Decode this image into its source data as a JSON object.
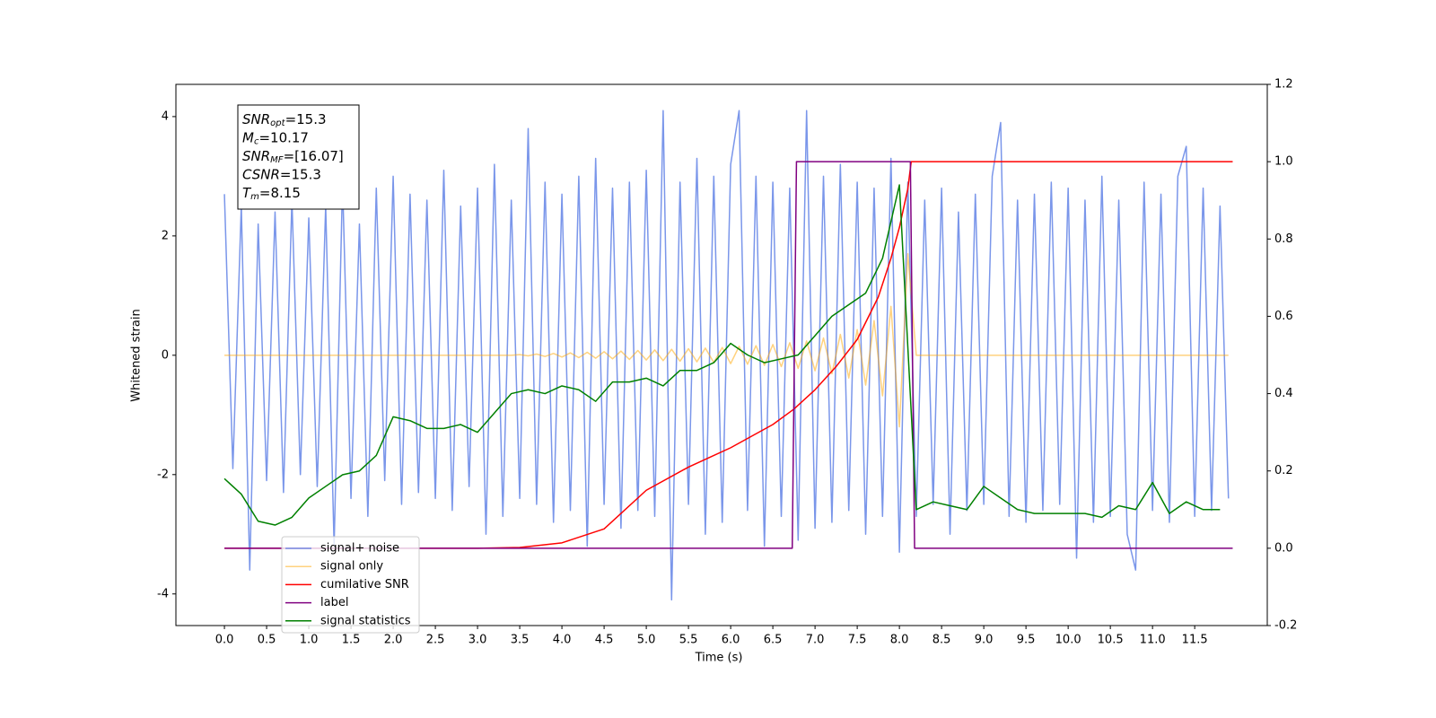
{
  "chart_data": {
    "type": "line",
    "xlabel": "Time (s)",
    "ylabel": "Whitened strain",
    "xlim": [
      -0.575,
      12.36
    ],
    "ylim": [
      -4.53,
      4.54
    ],
    "y2lim": [
      -0.2,
      1.2
    ],
    "xticks": [
      {
        "value": 0,
        "label": "0.0"
      },
      0.5,
      {
        "value": 1,
        "label": "1.0"
      },
      1.5,
      {
        "value": 2,
        "label": "2.0"
      },
      2.5,
      {
        "value": 3,
        "label": "3.0"
      },
      3.5,
      {
        "value": 4,
        "label": "4.0"
      },
      4.5,
      {
        "value": 5,
        "label": "5.0"
      },
      5.5,
      {
        "value": 6,
        "label": "6.0"
      },
      6.5,
      {
        "value": 7,
        "label": "7.0"
      },
      7.5,
      {
        "value": 8,
        "label": "8.0"
      },
      8.5,
      {
        "value": 9,
        "label": "9.0"
      },
      9.5,
      {
        "value": 10,
        "label": "10.0"
      },
      10.5,
      {
        "value": 11,
        "label": "11.0"
      },
      11.5
    ],
    "yticks": [
      -4,
      -2,
      0,
      2,
      4
    ],
    "y2ticks": [
      -0.2,
      {
        "value": 0,
        "label": "0.0"
      },
      0.2,
      0.4,
      0.6,
      0.8,
      {
        "value": 1,
        "label": "1.0"
      },
      1.2
    ],
    "annotations": [
      {
        "sym": "SNR",
        "sub": "opt",
        "text": "=15.3"
      },
      {
        "sym": "M",
        "sub": "c",
        "text": "=10.17"
      },
      {
        "sym": "SNR",
        "sub": "MF",
        "text": "=[16.07]"
      },
      {
        "sym": "CSNR",
        "text": "=15.3"
      },
      {
        "sym": "T",
        "sub": "m",
        "text": "=8.15"
      }
    ],
    "series": [
      {
        "name": "signal+ noise",
        "color": "#4169e1",
        "alpha": 0.7,
        "x": [
          0,
          0.1,
          0.2,
          0.3,
          0.4,
          0.5,
          0.6,
          0.7,
          0.8,
          0.9,
          1,
          1.1,
          1.2,
          1.3,
          1.4,
          1.5,
          1.6,
          1.7,
          1.8,
          1.9,
          2,
          2.1,
          2.2,
          2.3,
          2.4,
          2.5,
          2.6,
          2.7,
          2.8,
          2.9,
          3,
          3.1,
          3.2,
          3.3,
          3.4,
          3.5,
          3.6,
          3.7,
          3.8,
          3.9,
          4,
          4.1,
          4.2,
          4.3,
          4.4,
          4.5,
          4.6,
          4.7,
          4.8,
          4.9,
          5,
          5.1,
          5.2,
          5.3,
          5.4,
          5.5,
          5.6,
          5.7,
          5.8,
          5.9,
          6,
          6.1,
          6.2,
          6.3,
          6.4,
          6.5,
          6.6,
          6.7,
          6.8,
          6.9,
          7,
          7.1,
          7.2,
          7.3,
          7.4,
          7.5,
          7.6,
          7.7,
          7.8,
          7.9,
          8,
          8.1,
          8.2,
          8.3,
          8.4,
          8.5,
          8.6,
          8.7,
          8.8,
          8.9,
          9,
          9.1,
          9.2,
          9.3,
          9.4,
          9.5,
          9.6,
          9.7,
          9.8,
          9.9,
          10,
          10.1,
          10.2,
          10.3,
          10.4,
          10.5,
          10.6,
          10.7,
          10.8,
          10.9,
          11,
          11.1,
          11.2,
          11.3,
          11.4,
          11.5,
          11.6,
          11.7,
          11.8,
          11.9
        ],
        "values": [
          2.7,
          -1.9,
          2.5,
          -3.6,
          2.2,
          -2.1,
          2.4,
          -2.3,
          2.6,
          -2.0,
          2.3,
          -2.2,
          2.5,
          -3.2,
          2.9,
          -2.4,
          2.2,
          -2.7,
          2.8,
          -2.1,
          3.0,
          -2.5,
          2.7,
          -2.3,
          2.6,
          -2.4,
          3.1,
          -2.6,
          2.5,
          -2.2,
          2.8,
          -3.0,
          3.2,
          -2.7,
          2.6,
          -2.4,
          3.8,
          -2.5,
          2.9,
          -2.8,
          2.7,
          -2.6,
          3.0,
          -3.2,
          3.3,
          -2.5,
          2.8,
          -2.9,
          2.9,
          -2.6,
          3.1,
          -2.7,
          4.1,
          -4.1,
          2.9,
          -2.5,
          3.3,
          -3.0,
          3.0,
          -2.8,
          3.2,
          4.1,
          -2.6,
          3.0,
          -3.2,
          2.9,
          -2.7,
          2.8,
          -3.1,
          4.1,
          -2.9,
          3.0,
          -2.8,
          3.2,
          -2.6,
          2.9,
          -3.0,
          2.8,
          -2.7,
          3.3,
          -3.3,
          2.9,
          -2.7,
          2.6,
          -2.5,
          2.8,
          -3.0,
          2.4,
          -2.6,
          2.7,
          -2.5,
          3.0,
          3.9,
          -2.7,
          2.6,
          -2.8,
          2.7,
          -2.6,
          2.9,
          -2.5,
          2.8,
          -3.4,
          2.6,
          -2.8,
          3.0,
          -2.7,
          2.6,
          -3.0,
          -3.6,
          2.9,
          -2.6,
          2.7,
          -2.8,
          3.0,
          3.5,
          -2.7,
          2.8,
          -2.6,
          2.5,
          -2.4
        ]
      },
      {
        "name": "signal only",
        "color": "#ffa500",
        "alpha": 0.5,
        "x": [
          0,
          0.1,
          0.2,
          0.3,
          0.4,
          0.5,
          0.6,
          0.7,
          0.8,
          0.9,
          1,
          1.1,
          1.2,
          1.3,
          1.4,
          1.5,
          1.6,
          1.7,
          1.8,
          1.9,
          2,
          2.1,
          2.2,
          2.3,
          2.4,
          2.5,
          2.6,
          2.7,
          2.8,
          2.9,
          3,
          3.1,
          3.2,
          3.3,
          3.4,
          3.5,
          3.6,
          3.7,
          3.8,
          3.9,
          4,
          4.1,
          4.2,
          4.3,
          4.4,
          4.5,
          4.6,
          4.7,
          4.8,
          4.9,
          5,
          5.1,
          5.2,
          5.3,
          5.4,
          5.5,
          5.6,
          5.7,
          5.8,
          5.9,
          6,
          6.1,
          6.2,
          6.3,
          6.4,
          6.5,
          6.6,
          6.7,
          6.8,
          6.9,
          7,
          7.1,
          7.2,
          7.3,
          7.4,
          7.5,
          7.6,
          7.7,
          7.8,
          7.9,
          8,
          8.1,
          8.2,
          8.3,
          8.4,
          8.5,
          8.6,
          8.7,
          8.8,
          8.9,
          9,
          9.1,
          9.2,
          9.3,
          9.4,
          9.5,
          9.6,
          9.7,
          9.8,
          9.9,
          10,
          10.1,
          10.2,
          10.3,
          10.4,
          10.5,
          10.6,
          10.7,
          10.8,
          10.9,
          11,
          11.1,
          11.2,
          11.3,
          11.4,
          11.5,
          11.6,
          11.7,
          11.8,
          11.9
        ],
        "values": [
          0,
          0,
          0,
          0,
          0,
          0,
          0,
          0,
          0,
          0,
          0,
          0,
          0,
          0,
          0,
          0,
          0,
          0,
          0,
          0,
          0,
          0,
          0,
          0,
          0,
          0,
          0,
          0,
          0,
          0,
          0,
          0,
          0,
          0,
          0,
          0.01,
          -0.01,
          0.02,
          -0.02,
          0.03,
          -0.03,
          0.04,
          -0.04,
          0.05,
          -0.05,
          0.06,
          -0.06,
          0.07,
          -0.07,
          0.08,
          -0.08,
          0.09,
          -0.09,
          0.1,
          -0.1,
          0.11,
          -0.11,
          0.12,
          -0.12,
          0.13,
          -0.14,
          0.15,
          -0.15,
          0.16,
          -0.17,
          0.18,
          -0.19,
          0.21,
          -0.22,
          0.24,
          -0.26,
          0.29,
          -0.31,
          0.35,
          -0.38,
          0.43,
          -0.5,
          0.58,
          -0.68,
          0.82,
          -1.2,
          1.7,
          0,
          0,
          0,
          0,
          0,
          0,
          0,
          0,
          0,
          0,
          0,
          0,
          0,
          0,
          0,
          0,
          0,
          0,
          0,
          0,
          0,
          0,
          0,
          0,
          0,
          0,
          0,
          0,
          0,
          0,
          0,
          0,
          0,
          0,
          0,
          0,
          0,
          0
        ]
      },
      {
        "name": "cumilative SNR",
        "color": "#ff0000",
        "axis": "y2",
        "x": [
          0,
          1,
          2,
          3,
          3.5,
          4,
          4.5,
          5,
          5.5,
          6,
          6.5,
          6.75,
          7,
          7.25,
          7.5,
          7.75,
          7.9,
          8,
          8.1,
          8.14,
          8.2,
          9,
          10,
          11,
          11.95
        ],
        "values": [
          0,
          0,
          0,
          0,
          0.002,
          0.014,
          0.05,
          0.15,
          0.21,
          0.26,
          0.32,
          0.36,
          0.41,
          0.47,
          0.54,
          0.65,
          0.75,
          0.83,
          0.93,
          1,
          1,
          1,
          1,
          1,
          1
        ]
      },
      {
        "name": "label",
        "color": "#800080",
        "axis": "y2",
        "x": [
          0,
          6.73,
          6.78,
          8.13,
          8.18,
          11.95
        ],
        "values": [
          0,
          0,
          1,
          1,
          0,
          0
        ]
      },
      {
        "name": "signal statistics",
        "color": "#008000",
        "axis": "y2",
        "x": [
          0,
          0.2,
          0.4,
          0.6,
          0.8,
          1,
          1.2,
          1.4,
          1.6,
          1.8,
          2,
          2.2,
          2.4,
          2.6,
          2.8,
          3,
          3.2,
          3.4,
          3.6,
          3.8,
          4,
          4.2,
          4.4,
          4.6,
          4.8,
          5,
          5.2,
          5.4,
          5.6,
          5.8,
          6,
          6.2,
          6.4,
          6.6,
          6.8,
          7,
          7.2,
          7.4,
          7.6,
          7.8,
          8,
          8.2,
          8.4,
          8.6,
          8.8,
          9,
          9.2,
          9.4,
          9.6,
          9.8,
          10,
          10.2,
          10.4,
          10.6,
          10.8,
          11,
          11.2,
          11.4,
          11.6,
          11.8
        ],
        "values": [
          0.18,
          0.14,
          0.07,
          0.06,
          0.08,
          0.13,
          0.16,
          0.19,
          0.2,
          0.24,
          0.34,
          0.33,
          0.31,
          0.31,
          0.32,
          0.3,
          0.35,
          0.4,
          0.41,
          0.4,
          0.42,
          0.41,
          0.38,
          0.43,
          0.43,
          0.44,
          0.42,
          0.46,
          0.46,
          0.48,
          0.53,
          0.5,
          0.48,
          0.49,
          0.5,
          0.55,
          0.6,
          0.63,
          0.66,
          0.75,
          0.94,
          0.1,
          0.12,
          0.11,
          0.1,
          0.16,
          0.13,
          0.1,
          0.09,
          0.09,
          0.09,
          0.09,
          0.08,
          0.11,
          0.1,
          0.17,
          0.09,
          0.12,
          0.1,
          0.1
        ]
      }
    ]
  }
}
